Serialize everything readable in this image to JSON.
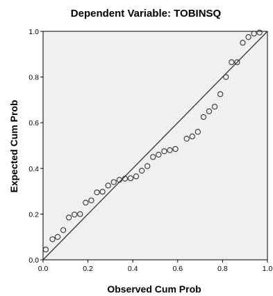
{
  "chart_data": {
    "type": "scatter",
    "title": "Dependent Variable: TOBINSQ",
    "xlabel": "Observed Cum Prob",
    "ylabel": "Expected Cum Prob",
    "xlim": [
      0.0,
      1.0
    ],
    "ylim": [
      0.0,
      1.0
    ],
    "x_ticks": [
      "0.0",
      "0.2",
      "0.4",
      "0.6",
      "0.8",
      "1.0"
    ],
    "y_ticks": [
      "0.0",
      "0.2",
      "0.4",
      "0.6",
      "0.8",
      "1.0"
    ],
    "grid": false,
    "reference_line": {
      "from": [
        0.0,
        0.0
      ],
      "to": [
        1.0,
        1.0
      ]
    },
    "colors": {
      "plot_background": "#f0f0f0",
      "marker_stroke": "#333333",
      "line": "#333333"
    },
    "points": [
      {
        "x": 0.012,
        "y": 0.045
      },
      {
        "x": 0.042,
        "y": 0.09
      },
      {
        "x": 0.065,
        "y": 0.1
      },
      {
        "x": 0.09,
        "y": 0.13
      },
      {
        "x": 0.115,
        "y": 0.185
      },
      {
        "x": 0.14,
        "y": 0.198
      },
      {
        "x": 0.165,
        "y": 0.2
      },
      {
        "x": 0.19,
        "y": 0.25
      },
      {
        "x": 0.215,
        "y": 0.26
      },
      {
        "x": 0.24,
        "y": 0.295
      },
      {
        "x": 0.265,
        "y": 0.298
      },
      {
        "x": 0.29,
        "y": 0.325
      },
      {
        "x": 0.315,
        "y": 0.34
      },
      {
        "x": 0.34,
        "y": 0.35
      },
      {
        "x": 0.365,
        "y": 0.355
      },
      {
        "x": 0.39,
        "y": 0.357
      },
      {
        "x": 0.415,
        "y": 0.365
      },
      {
        "x": 0.44,
        "y": 0.39
      },
      {
        "x": 0.465,
        "y": 0.41
      },
      {
        "x": 0.49,
        "y": 0.45
      },
      {
        "x": 0.515,
        "y": 0.46
      },
      {
        "x": 0.54,
        "y": 0.475
      },
      {
        "x": 0.565,
        "y": 0.48
      },
      {
        "x": 0.59,
        "y": 0.485
      },
      {
        "x": 0.64,
        "y": 0.53
      },
      {
        "x": 0.665,
        "y": 0.54
      },
      {
        "x": 0.69,
        "y": 0.56
      },
      {
        "x": 0.715,
        "y": 0.625
      },
      {
        "x": 0.74,
        "y": 0.65
      },
      {
        "x": 0.765,
        "y": 0.67
      },
      {
        "x": 0.79,
        "y": 0.725
      },
      {
        "x": 0.815,
        "y": 0.8
      },
      {
        "x": 0.84,
        "y": 0.865
      },
      {
        "x": 0.865,
        "y": 0.865
      },
      {
        "x": 0.89,
        "y": 0.95
      },
      {
        "x": 0.915,
        "y": 0.975
      },
      {
        "x": 0.94,
        "y": 0.99
      },
      {
        "x": 0.965,
        "y": 0.995
      }
    ]
  }
}
